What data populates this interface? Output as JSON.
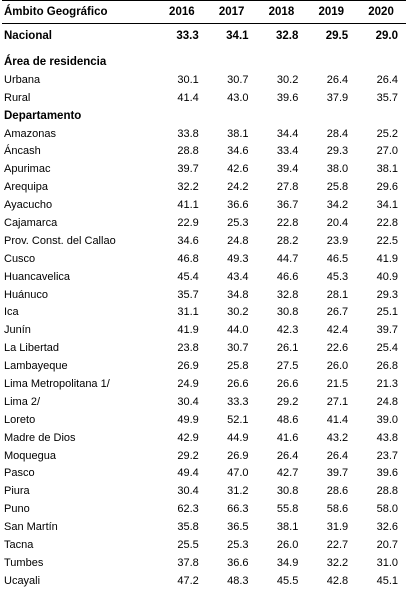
{
  "header": {
    "geo_label": "Ámbito Geográfico",
    "years": [
      "2016",
      "2017",
      "2018",
      "2019",
      "2020"
    ]
  },
  "national": {
    "name": "Nacional",
    "values": [
      "33.3",
      "34.1",
      "32.8",
      "29.5",
      "29.0"
    ]
  },
  "residence": {
    "title": "Área de residencia",
    "rows": [
      {
        "name": "Urbana",
        "values": [
          "30.1",
          "30.7",
          "30.2",
          "26.4",
          "26.4"
        ]
      },
      {
        "name": "Rural",
        "values": [
          "41.4",
          "43.0",
          "39.6",
          "37.9",
          "35.7"
        ]
      }
    ]
  },
  "departments": {
    "title": "Departamento",
    "rows": [
      {
        "name": "Amazonas",
        "values": [
          "33.8",
          "38.1",
          "34.4",
          "28.4",
          "25.2"
        ]
      },
      {
        "name": "Áncash",
        "values": [
          "28.8",
          "34.6",
          "33.4",
          "29.3",
          "27.0"
        ]
      },
      {
        "name": "Apurimac",
        "values": [
          "39.7",
          "42.6",
          "39.4",
          "38.0",
          "38.1"
        ]
      },
      {
        "name": "Arequipa",
        "values": [
          "32.2",
          "24.2",
          "27.8",
          "25.8",
          "29.6"
        ]
      },
      {
        "name": "Ayacucho",
        "values": [
          "41.1",
          "36.6",
          "36.7",
          "34.2",
          "34.1"
        ]
      },
      {
        "name": "Cajamarca",
        "values": [
          "22.9",
          "25.3",
          "22.8",
          "20.4",
          "22.8"
        ]
      },
      {
        "name": "Prov. Const. del Callao",
        "values": [
          "34.6",
          "24.8",
          "28.2",
          "23.9",
          "22.5"
        ]
      },
      {
        "name": "Cusco",
        "values": [
          "46.8",
          "49.3",
          "44.7",
          "46.5",
          "41.9"
        ]
      },
      {
        "name": "Huancavelica",
        "values": [
          "45.4",
          "43.4",
          "46.6",
          "45.3",
          "40.9"
        ]
      },
      {
        "name": "Huánuco",
        "values": [
          "35.7",
          "34.8",
          "32.8",
          "28.1",
          "29.3"
        ]
      },
      {
        "name": "Ica",
        "values": [
          "31.1",
          "30.2",
          "30.8",
          "26.7",
          "25.1"
        ]
      },
      {
        "name": "Junín",
        "values": [
          "41.9",
          "44.0",
          "42.3",
          "42.4",
          "39.7"
        ]
      },
      {
        "name": "La Libertad",
        "values": [
          "23.8",
          "30.7",
          "26.1",
          "22.6",
          "25.4"
        ]
      },
      {
        "name": "Lambayeque",
        "values": [
          "26.9",
          "25.8",
          "27.5",
          "26.0",
          "26.8"
        ]
      },
      {
        "name": "Lima Metropolitana 1/",
        "values": [
          "24.9",
          "26.6",
          "26.6",
          "21.5",
          "21.3"
        ]
      },
      {
        "name": "Lima 2/",
        "values": [
          "30.4",
          "33.3",
          "29.2",
          "27.1",
          "24.8"
        ]
      },
      {
        "name": "Loreto",
        "values": [
          "49.9",
          "52.1",
          "48.6",
          "41.4",
          "39.0"
        ]
      },
      {
        "name": "Madre de Dios",
        "values": [
          "42.9",
          "44.9",
          "41.6",
          "43.2",
          "43.8"
        ]
      },
      {
        "name": "Moquegua",
        "values": [
          "29.2",
          "26.9",
          "26.4",
          "26.4",
          "23.7"
        ]
      },
      {
        "name": "Pasco",
        "values": [
          "49.4",
          "47.0",
          "42.7",
          "39.7",
          "39.6"
        ]
      },
      {
        "name": "Piura",
        "values": [
          "30.4",
          "31.2",
          "30.8",
          "28.6",
          "28.8"
        ]
      },
      {
        "name": "Puno",
        "values": [
          "62.3",
          "66.3",
          "55.8",
          "58.6",
          "58.0"
        ]
      },
      {
        "name": "San Martín",
        "values": [
          "35.8",
          "36.5",
          "38.1",
          "31.9",
          "32.6"
        ]
      },
      {
        "name": "Tacna",
        "values": [
          "25.5",
          "25.3",
          "26.0",
          "22.7",
          "20.7"
        ]
      },
      {
        "name": "Tumbes",
        "values": [
          "37.8",
          "36.6",
          "34.9",
          "32.2",
          "31.0"
        ]
      },
      {
        "name": "Ucayali",
        "values": [
          "47.2",
          "48.3",
          "45.5",
          "42.8",
          "45.1"
        ]
      }
    ]
  }
}
